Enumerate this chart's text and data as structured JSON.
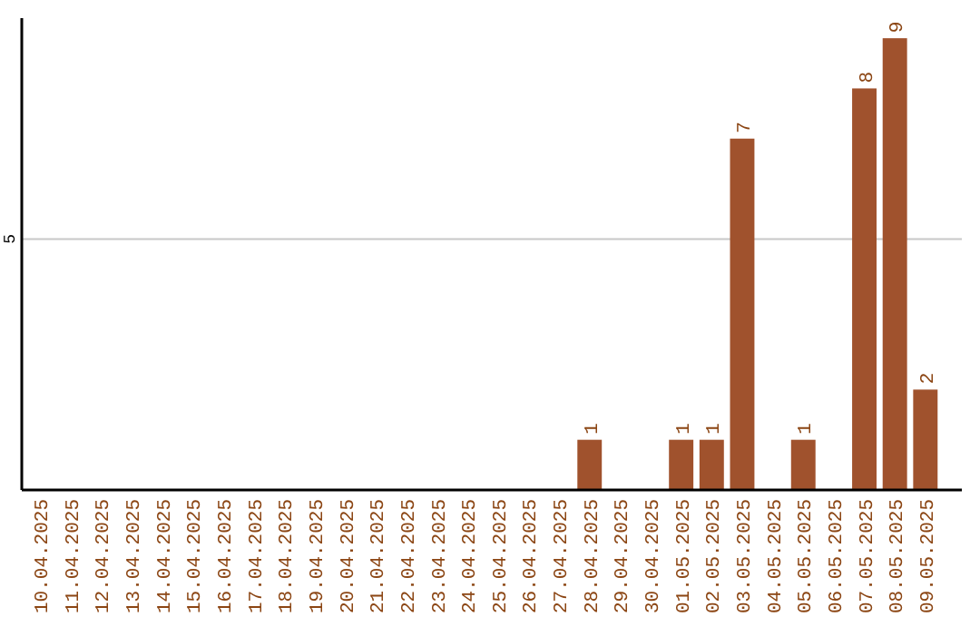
{
  "chart_data": {
    "type": "bar",
    "categories": [
      "10.04.2025",
      "11.04.2025",
      "12.04.2025",
      "13.04.2025",
      "14.04.2025",
      "15.04.2025",
      "16.04.2025",
      "17.04.2025",
      "18.04.2025",
      "19.04.2025",
      "20.04.2025",
      "21.04.2025",
      "22.04.2025",
      "23.04.2025",
      "24.04.2025",
      "25.04.2025",
      "26.04.2025",
      "27.04.2025",
      "28.04.2025",
      "29.04.2025",
      "30.04.2025",
      "01.05.2025",
      "02.05.2025",
      "03.05.2025",
      "04.05.2025",
      "05.05.2025",
      "06.05.2025",
      "07.05.2025",
      "08.05.2025",
      "09.05.2025"
    ],
    "values": [
      null,
      null,
      null,
      null,
      null,
      null,
      null,
      null,
      null,
      null,
      null,
      null,
      null,
      null,
      null,
      null,
      null,
      null,
      1,
      null,
      null,
      1,
      1,
      7,
      null,
      1,
      null,
      8,
      9,
      2
    ],
    "data_labels": true,
    "color": "#a0522d",
    "ylim": [
      0,
      9.4
    ],
    "yticks": [
      5
    ],
    "grid": "y"
  }
}
